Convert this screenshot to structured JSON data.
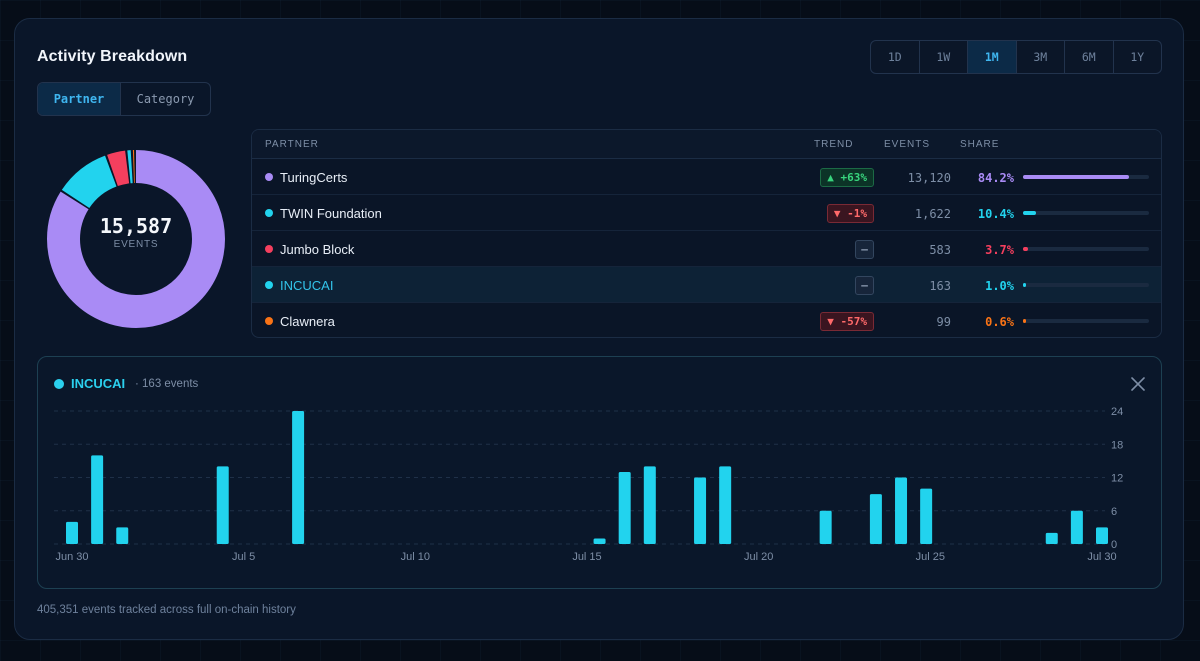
{
  "header": {
    "title": "Activity Breakdown"
  },
  "range_tabs": [
    {
      "label": "1D",
      "active": false
    },
    {
      "label": "1W",
      "active": false
    },
    {
      "label": "1M",
      "active": true
    },
    {
      "label": "3M",
      "active": false
    },
    {
      "label": "6M",
      "active": false
    },
    {
      "label": "1Y",
      "active": false
    }
  ],
  "view_toggle": [
    {
      "label": "Partner",
      "active": true
    },
    {
      "label": "Category",
      "active": false
    }
  ],
  "donut": {
    "total": "15,587",
    "label": "EVENTS"
  },
  "table": {
    "headers": {
      "partner": "PARTNER",
      "trend": "TREND",
      "events": "EVENTS",
      "share": "SHARE"
    },
    "rows": [
      {
        "name": "TuringCerts",
        "color": "#a98bf5",
        "trend": "▲ +63%",
        "trend_dir": "up",
        "events": "13,120",
        "share": "84.2%",
        "share_value": 84.2,
        "selected": false
      },
      {
        "name": "TWIN Foundation",
        "color": "#22d3ee",
        "trend": "▼ -1%",
        "trend_dir": "down",
        "events": "1,622",
        "share": "10.4%",
        "share_value": 10.4,
        "selected": false
      },
      {
        "name": "Jumbo Block",
        "color": "#f43f5e",
        "trend": "–",
        "trend_dir": "flat",
        "events": "583",
        "share": "3.7%",
        "share_value": 3.7,
        "selected": false
      },
      {
        "name": "INCUCAI",
        "color": "#22d3ee",
        "trend": "–",
        "trend_dir": "flat",
        "events": "163",
        "share": "1.0%",
        "share_value": 1.0,
        "selected": true
      },
      {
        "name": "Clawnera",
        "color": "#f97316",
        "trend": "▼ -57%",
        "trend_dir": "down",
        "events": "99",
        "share": "0.6%",
        "share_value": 0.6,
        "selected": false
      }
    ]
  },
  "detail": {
    "partner": "INCUCAI",
    "count_text": "· 163 events",
    "close_icon": "close-icon"
  },
  "chart_data": {
    "type": "bar",
    "series": [
      {
        "values": [
          4,
          16,
          3,
          0,
          0,
          0,
          14,
          0,
          0,
          24,
          0,
          0,
          0,
          0,
          0,
          0,
          0,
          0,
          0,
          0,
          0,
          1,
          13,
          14,
          0,
          12,
          14,
          0,
          0,
          0,
          6,
          0,
          9,
          12,
          10,
          0,
          0,
          0,
          0,
          2,
          6,
          3
        ]
      }
    ],
    "x_ticks": [
      "Jun 30",
      "Jul 5",
      "Jul 10",
      "Jul 15",
      "Jul 20",
      "Jul 25",
      "Jul 30"
    ],
    "y_ticks": [
      "0",
      "6",
      "12",
      "18",
      "24"
    ],
    "ylim": [
      0,
      24
    ],
    "grid": true,
    "color": "#22d3ee"
  },
  "footer": {
    "text": "405,351 events tracked across full on-chain history"
  }
}
